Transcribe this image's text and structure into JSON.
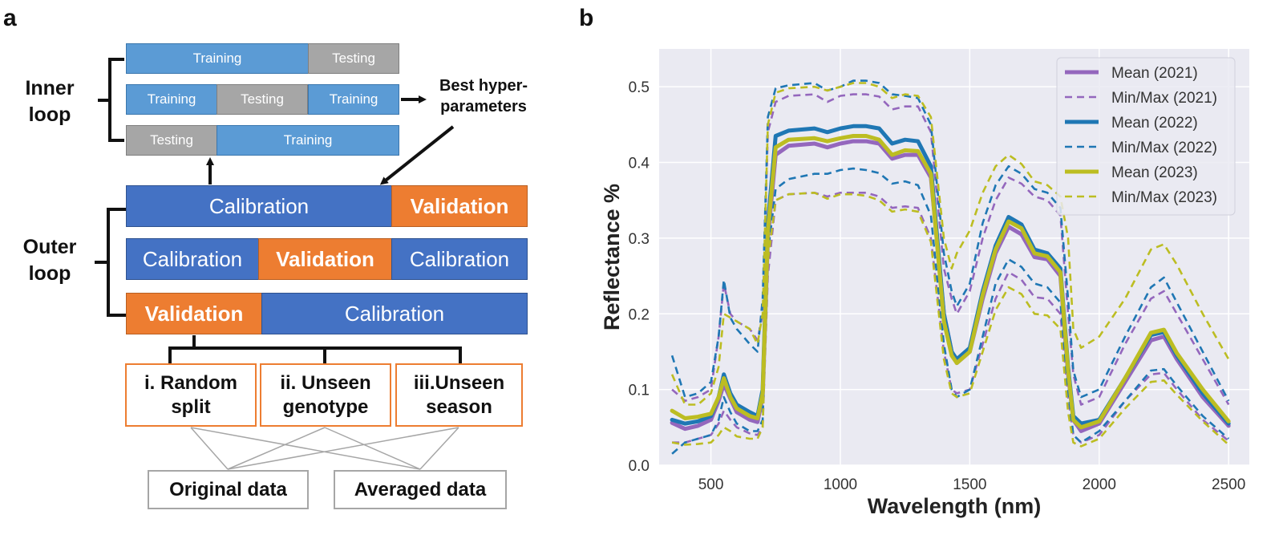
{
  "panel_a": {
    "letter": "a",
    "inner_loop_label": "Inner\nloop",
    "outer_loop_label": "Outer\nloop",
    "best_hyper_label": "Best hyper-\nparameters",
    "inner_rows": [
      [
        {
          "label": "Training",
          "kind": "train"
        },
        {
          "label": "Testing",
          "kind": "test"
        }
      ],
      [
        {
          "label": "Training",
          "kind": "train"
        },
        {
          "label": "Testing",
          "kind": "test"
        },
        {
          "label": "Training",
          "kind": "train"
        }
      ],
      [
        {
          "label": "Testing",
          "kind": "test"
        },
        {
          "label": "Training",
          "kind": "train"
        }
      ]
    ],
    "outer_rows": [
      [
        {
          "label": "Calibration",
          "kind": "cal"
        },
        {
          "label": "Validation",
          "kind": "val"
        }
      ],
      [
        {
          "label": "Calibration",
          "kind": "cal"
        },
        {
          "label": "Validation",
          "kind": "val"
        },
        {
          "label": "Calibration",
          "kind": "cal"
        }
      ],
      [
        {
          "label": "Validation",
          "kind": "val"
        },
        {
          "label": "Calibration",
          "kind": "cal"
        }
      ]
    ],
    "scenarios": [
      "i. Random\nsplit",
      "ii. Unseen\ngenotype",
      "iii.Unseen\nseason"
    ],
    "data_types": [
      "Original data",
      "Averaged data"
    ]
  },
  "panel_b": {
    "letter": "b",
    "colors": {
      "2021": "#9467bd",
      "2022": "#1f77b4",
      "2023": "#bcbd22",
      "plot_bg": "#eaeaf2"
    }
  },
  "chart_data": {
    "type": "line",
    "title": "",
    "xlabel": "Wavelength (nm)",
    "ylabel": "Reflectance %",
    "xlim": [
      300,
      2580
    ],
    "ylim": [
      0,
      0.55
    ],
    "xticks": [
      500,
      1000,
      1500,
      2000,
      2500
    ],
    "yticks": [
      0.0,
      0.1,
      0.2,
      0.3,
      0.4,
      0.5
    ],
    "grid": true,
    "legend_position": "top-right",
    "x": [
      350,
      400,
      450,
      500,
      530,
      550,
      575,
      600,
      650,
      680,
      700,
      720,
      750,
      800,
      900,
      950,
      1000,
      1050,
      1100,
      1150,
      1200,
      1250,
      1300,
      1350,
      1400,
      1430,
      1450,
      1500,
      1550,
      1600,
      1650,
      1700,
      1750,
      1800,
      1850,
      1880,
      1900,
      1930,
      2000,
      2100,
      2200,
      2250,
      2300,
      2400,
      2500
    ],
    "series": [
      {
        "name": "Mean (2021)",
        "year": "2021",
        "style": "solid",
        "values": [
          0.056,
          0.048,
          0.052,
          0.06,
          0.085,
          0.107,
          0.088,
          0.07,
          0.06,
          0.057,
          0.09,
          0.3,
          0.41,
          0.422,
          0.425,
          0.42,
          0.425,
          0.428,
          0.428,
          0.425,
          0.405,
          0.41,
          0.41,
          0.38,
          0.2,
          0.15,
          0.135,
          0.15,
          0.22,
          0.28,
          0.315,
          0.305,
          0.275,
          0.272,
          0.25,
          0.12,
          0.06,
          0.045,
          0.055,
          0.11,
          0.165,
          0.17,
          0.14,
          0.09,
          0.052
        ]
      },
      {
        "name": "Min/Max (2021)",
        "year": "2021",
        "style": "dashed",
        "values": [
          0.1,
          0.085,
          0.09,
          0.1,
          0.17,
          0.24,
          0.2,
          0.19,
          0.18,
          0.165,
          0.2,
          0.44,
          0.48,
          0.488,
          0.49,
          0.48,
          0.488,
          0.49,
          0.49,
          0.487,
          0.47,
          0.474,
          0.474,
          0.44,
          0.26,
          0.22,
          0.2,
          0.23,
          0.3,
          0.35,
          0.38,
          0.372,
          0.355,
          0.35,
          0.33,
          0.2,
          0.12,
          0.08,
          0.09,
          0.16,
          0.22,
          0.23,
          0.2,
          0.14,
          0.08
        ]
      },
      {
        "name": "Min/Max (2021)",
        "year": "2021",
        "style": "dashed",
        "legend": false,
        "values": [
          0.03,
          0.03,
          0.035,
          0.04,
          0.055,
          0.072,
          0.06,
          0.05,
          0.042,
          0.04,
          0.05,
          0.25,
          0.35,
          0.358,
          0.36,
          0.355,
          0.36,
          0.36,
          0.36,
          0.355,
          0.34,
          0.342,
          0.34,
          0.3,
          0.15,
          0.1,
          0.095,
          0.1,
          0.16,
          0.22,
          0.255,
          0.245,
          0.222,
          0.22,
          0.2,
          0.09,
          0.04,
          0.03,
          0.04,
          0.085,
          0.12,
          0.122,
          0.1,
          0.06,
          0.032
        ]
      },
      {
        "name": "Mean (2022)",
        "year": "2022",
        "style": "solid",
        "values": [
          0.06,
          0.055,
          0.058,
          0.065,
          0.09,
          0.12,
          0.095,
          0.08,
          0.07,
          0.065,
          0.1,
          0.32,
          0.435,
          0.442,
          0.445,
          0.44,
          0.445,
          0.448,
          0.448,
          0.445,
          0.425,
          0.43,
          0.428,
          0.395,
          0.2,
          0.15,
          0.14,
          0.155,
          0.23,
          0.29,
          0.328,
          0.318,
          0.285,
          0.28,
          0.26,
          0.13,
          0.065,
          0.055,
          0.06,
          0.115,
          0.172,
          0.176,
          0.145,
          0.095,
          0.055
        ]
      },
      {
        "name": "Min/Max (2022)",
        "year": "2022",
        "style": "dashed",
        "values": [
          0.145,
          0.09,
          0.095,
          0.11,
          0.17,
          0.245,
          0.195,
          0.18,
          0.16,
          0.15,
          0.22,
          0.46,
          0.498,
          0.502,
          0.505,
          0.495,
          0.5,
          0.508,
          0.508,
          0.505,
          0.49,
          0.488,
          0.485,
          0.45,
          0.28,
          0.23,
          0.21,
          0.24,
          0.32,
          0.37,
          0.395,
          0.385,
          0.365,
          0.36,
          0.34,
          0.22,
          0.125,
          0.09,
          0.1,
          0.17,
          0.235,
          0.248,
          0.215,
          0.15,
          0.085
        ]
      },
      {
        "name": "Min/Max (2022)",
        "year": "2022",
        "style": "dashed",
        "legend": false,
        "values": [
          0.015,
          0.03,
          0.035,
          0.04,
          0.06,
          0.09,
          0.07,
          0.055,
          0.045,
          0.045,
          0.06,
          0.28,
          0.365,
          0.378,
          0.385,
          0.385,
          0.39,
          0.392,
          0.39,
          0.386,
          0.372,
          0.375,
          0.37,
          0.33,
          0.16,
          0.1,
          0.09,
          0.1,
          0.17,
          0.24,
          0.272,
          0.262,
          0.24,
          0.235,
          0.215,
          0.1,
          0.04,
          0.03,
          0.045,
          0.085,
          0.125,
          0.127,
          0.105,
          0.065,
          0.035
        ]
      },
      {
        "name": "Mean (2023)",
        "year": "2023",
        "style": "solid",
        "values": [
          0.072,
          0.062,
          0.064,
          0.068,
          0.09,
          0.115,
          0.09,
          0.075,
          0.065,
          0.062,
          0.095,
          0.31,
          0.42,
          0.43,
          0.432,
          0.428,
          0.432,
          0.435,
          0.435,
          0.43,
          0.41,
          0.416,
          0.415,
          0.385,
          0.19,
          0.145,
          0.135,
          0.15,
          0.225,
          0.285,
          0.322,
          0.313,
          0.28,
          0.276,
          0.255,
          0.125,
          0.06,
          0.05,
          0.058,
          0.115,
          0.175,
          0.179,
          0.148,
          0.1,
          0.058
        ]
      },
      {
        "name": "Min/Max (2023)",
        "year": "2023",
        "style": "dashed",
        "values": [
          0.12,
          0.08,
          0.08,
          0.095,
          0.13,
          0.2,
          0.195,
          0.19,
          0.18,
          0.16,
          0.2,
          0.45,
          0.492,
          0.498,
          0.5,
          0.495,
          0.5,
          0.505,
          0.505,
          0.5,
          0.485,
          0.49,
          0.488,
          0.46,
          0.3,
          0.26,
          0.28,
          0.31,
          0.36,
          0.395,
          0.41,
          0.398,
          0.375,
          0.37,
          0.355,
          0.3,
          0.18,
          0.155,
          0.17,
          0.22,
          0.285,
          0.292,
          0.265,
          0.2,
          0.14
        ]
      },
      {
        "name": "Min/Max (2023)",
        "year": "2023",
        "style": "dashed",
        "legend": false,
        "values": [
          0.03,
          0.027,
          0.028,
          0.03,
          0.04,
          0.05,
          0.045,
          0.038,
          0.035,
          0.035,
          0.05,
          0.27,
          0.35,
          0.358,
          0.36,
          0.352,
          0.358,
          0.358,
          0.356,
          0.35,
          0.335,
          0.338,
          0.335,
          0.295,
          0.14,
          0.095,
          0.09,
          0.095,
          0.15,
          0.205,
          0.235,
          0.226,
          0.2,
          0.198,
          0.18,
          0.07,
          0.03,
          0.025,
          0.035,
          0.075,
          0.11,
          0.112,
          0.093,
          0.058,
          0.027
        ]
      }
    ],
    "legend": [
      {
        "label": "Mean (2021)",
        "year": "2021",
        "style": "solid"
      },
      {
        "label": "Min/Max (2021)",
        "year": "2021",
        "style": "dashed"
      },
      {
        "label": "Mean (2022)",
        "year": "2022",
        "style": "solid"
      },
      {
        "label": "Min/Max (2022)",
        "year": "2022",
        "style": "dashed"
      },
      {
        "label": "Mean (2023)",
        "year": "2023",
        "style": "solid"
      },
      {
        "label": "Min/Max (2023)",
        "year": "2023",
        "style": "dashed"
      }
    ]
  }
}
